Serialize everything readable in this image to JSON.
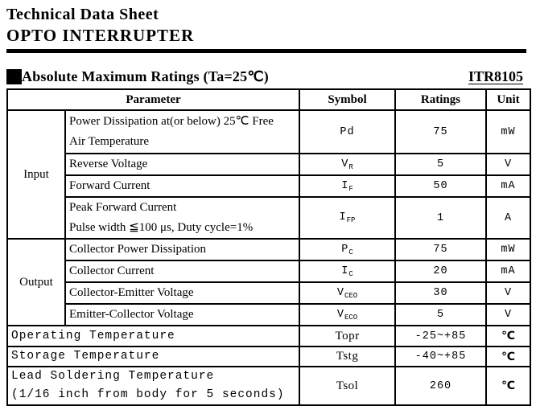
{
  "header": {
    "title": "Technical Data Sheet",
    "subtitle": "OPTO INTERRUPTER"
  },
  "section": {
    "heading": "Absolute Maximum Ratings (Ta=25℃)",
    "part_number": "ITR8105"
  },
  "table": {
    "columns": {
      "parameter": "Parameter",
      "symbol": "Symbol",
      "ratings": "Ratings",
      "unit": "Unit"
    },
    "groups": {
      "input": "Input",
      "output": "Output"
    },
    "rows": [
      {
        "group": "Input",
        "parameter": "Power Dissipation at(or below) 25℃  Free\nAir Temperature",
        "symbol": "Pd",
        "symbol_sub": "",
        "rating": "75",
        "unit": "mW"
      },
      {
        "parameter": "Reverse Voltage",
        "symbol": "V",
        "symbol_sub": "R",
        "rating": "5",
        "unit": "V"
      },
      {
        "parameter": "Forward Current",
        "symbol": "I",
        "symbol_sub": "F",
        "rating": "50",
        "unit": "mA"
      },
      {
        "parameter": "Peak Forward Current\nPulse width ≦100 μs, Duty cycle=1%",
        "symbol": "I",
        "symbol_sub": "FP",
        "rating": "1",
        "unit": "A"
      },
      {
        "group": "Output",
        "parameter": "Collector Power Dissipation",
        "symbol": "P",
        "symbol_sub": "C",
        "rating": "75",
        "unit": "mW"
      },
      {
        "parameter": "Collector Current",
        "symbol": "I",
        "symbol_sub": "C",
        "rating": "20",
        "unit": "mA"
      },
      {
        "parameter": "Collector-Emitter Voltage",
        "symbol": "V",
        "symbol_sub": "CEO",
        "rating": "30",
        "unit": "V"
      },
      {
        "parameter": "Emitter-Collector Voltage",
        "symbol": "V",
        "symbol_sub": "ECO",
        "rating": "5",
        "unit": "V"
      },
      {
        "parameter": "Operating Temperature",
        "symbol": "Topr",
        "symbol_sub": "",
        "rating": "-25~+85",
        "unit": "℃"
      },
      {
        "parameter": "Storage Temperature",
        "symbol": "Tstg",
        "symbol_sub": "",
        "rating": "-40~+85",
        "unit": "℃"
      },
      {
        "parameter": "Lead Soldering Temperature\n(1/16 inch from body for 5 seconds)",
        "symbol": "Tsol",
        "symbol_sub": "",
        "rating": "260",
        "unit": "℃"
      }
    ]
  }
}
